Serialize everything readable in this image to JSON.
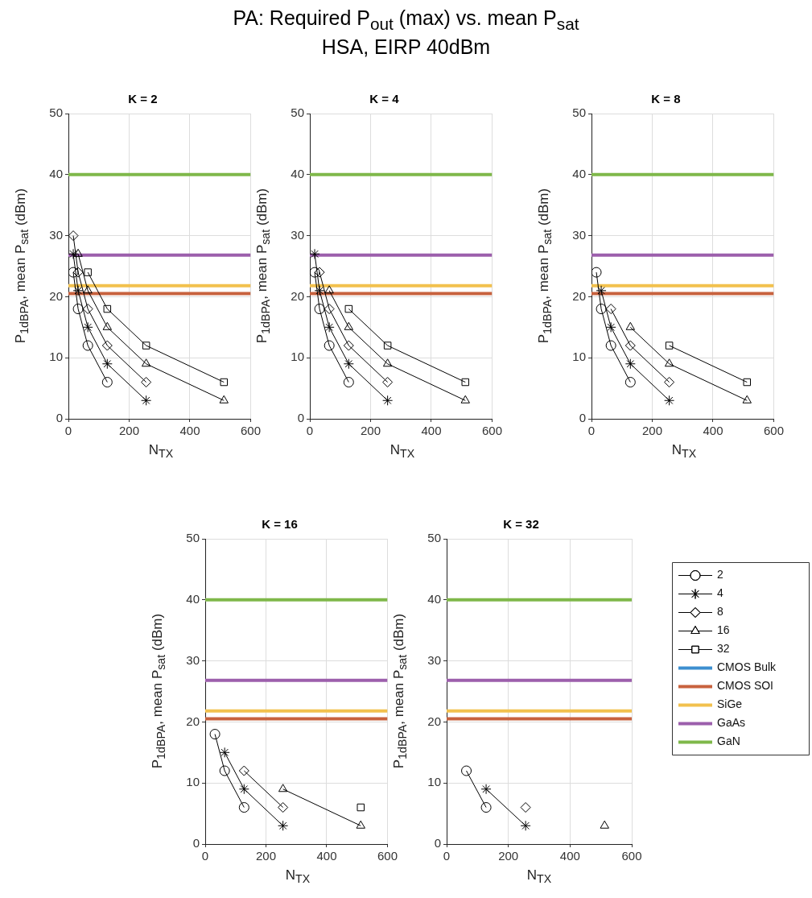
{
  "chart_data": [
    {
      "type": "other",
      "title": "PA: Required P$_{out}$ (max) vs. mean P$_{sat}$",
      "subtitle": "HSA, EIRP 40dBm"
    },
    {
      "type": "line",
      "title": "K = 2",
      "xlabel": "N$_{TX}$",
      "ylabel": "P$_{1dB}$$_{PA}$, mean P$_{sat}$ (dBm)",
      "xlim": [
        0,
        600
      ],
      "xticks": [
        0,
        200,
        400,
        600
      ],
      "ylim": [
        0,
        50
      ],
      "yticks": [
        0,
        10,
        20,
        30,
        40,
        50
      ],
      "grid": true,
      "series": [
        {
          "color": "#000000",
          "marker": "circle",
          "x": [
            16,
            32,
            64,
            128
          ],
          "values": [
            24,
            18,
            12,
            6
          ]
        },
        {
          "color": "#000000",
          "marker": "cross",
          "x": [
            16,
            32,
            64,
            128,
            256
          ],
          "values": [
            27,
            21,
            15,
            9,
            3
          ]
        },
        {
          "color": "#000000",
          "marker": "diamond",
          "x": [
            16,
            32,
            64,
            128,
            256
          ],
          "values": [
            30,
            24,
            18,
            12,
            6
          ]
        },
        {
          "color": "#000000",
          "marker": "triangle",
          "x": [
            32,
            64,
            128,
            256,
            512
          ],
          "values": [
            27,
            21,
            15,
            9,
            3
          ]
        },
        {
          "color": "#000000",
          "marker": "square",
          "x": [
            64,
            128,
            256,
            512
          ],
          "values": [
            24,
            18,
            12,
            6
          ]
        },
        {
          "color": "#c8623e",
          "marker": "none",
          "x": [
            0,
            600
          ],
          "values": [
            20.5,
            20.5
          ]
        },
        {
          "color": "#f2c14e",
          "marker": "none",
          "x": [
            0,
            600
          ],
          "values": [
            21.8,
            21.8
          ]
        },
        {
          "color": "#9c5fac",
          "marker": "none",
          "x": [
            0,
            600
          ],
          "values": [
            26.8,
            26.8
          ]
        },
        {
          "color": "#7fb84a",
          "marker": "none",
          "x": [
            0,
            600
          ],
          "values": [
            40,
            40
          ]
        }
      ]
    },
    {
      "type": "line",
      "title": "K = 4",
      "xlabel": "N$_{TX}$",
      "ylabel": "P$_{1dB}$$_{PA}$, mean P$_{sat}$ (dBm)",
      "xlim": [
        0,
        600
      ],
      "xticks": [
        0,
        200,
        400,
        600
      ],
      "ylim": [
        0,
        50
      ],
      "yticks": [
        0,
        10,
        20,
        30,
        40,
        50
      ],
      "grid": true,
      "series": [
        {
          "color": "#000000",
          "marker": "circle",
          "x": [
            16,
            32,
            64,
            128
          ],
          "values": [
            24,
            18,
            12,
            6
          ]
        },
        {
          "color": "#000000",
          "marker": "cross",
          "x": [
            16,
            32,
            64,
            128,
            256
          ],
          "values": [
            27,
            21,
            15,
            9,
            3
          ]
        },
        {
          "color": "#000000",
          "marker": "diamond",
          "x": [
            32,
            64,
            128,
            256
          ],
          "values": [
            24,
            18,
            12,
            6
          ]
        },
        {
          "color": "#000000",
          "marker": "triangle",
          "x": [
            64,
            128,
            256,
            512
          ],
          "values": [
            21,
            15,
            9,
            3
          ]
        },
        {
          "color": "#000000",
          "marker": "square",
          "x": [
            128,
            256,
            512
          ],
          "values": [
            18,
            12,
            6
          ]
        },
        {
          "color": "#c8623e",
          "marker": "none",
          "x": [
            0,
            600
          ],
          "values": [
            20.5,
            20.5
          ]
        },
        {
          "color": "#f2c14e",
          "marker": "none",
          "x": [
            0,
            600
          ],
          "values": [
            21.8,
            21.8
          ]
        },
        {
          "color": "#9c5fac",
          "marker": "none",
          "x": [
            0,
            600
          ],
          "values": [
            26.8,
            26.8
          ]
        },
        {
          "color": "#7fb84a",
          "marker": "none",
          "x": [
            0,
            600
          ],
          "values": [
            40,
            40
          ]
        }
      ]
    },
    {
      "type": "line",
      "title": "K = 8",
      "xlabel": "N$_{TX}$",
      "ylabel": "P$_{1dB}$$_{PA}$, mean P$_{sat}$ (dBm)",
      "xlim": [
        0,
        600
      ],
      "xticks": [
        0,
        200,
        400,
        600
      ],
      "ylim": [
        0,
        50
      ],
      "yticks": [
        0,
        10,
        20,
        30,
        40,
        50
      ],
      "grid": true,
      "series": [
        {
          "color": "#000000",
          "marker": "circle",
          "x": [
            16,
            32,
            64,
            128
          ],
          "values": [
            24,
            18,
            12,
            6
          ]
        },
        {
          "color": "#000000",
          "marker": "cross",
          "x": [
            32,
            64,
            128,
            256
          ],
          "values": [
            21,
            15,
            9,
            3
          ]
        },
        {
          "color": "#000000",
          "marker": "diamond",
          "x": [
            64,
            128,
            256
          ],
          "values": [
            18,
            12,
            6
          ]
        },
        {
          "color": "#000000",
          "marker": "triangle",
          "x": [
            128,
            256,
            512
          ],
          "values": [
            15,
            9,
            3
          ]
        },
        {
          "color": "#000000",
          "marker": "square",
          "x": [
            256,
            512
          ],
          "values": [
            12,
            6
          ]
        },
        {
          "color": "#c8623e",
          "marker": "none",
          "x": [
            0,
            600
          ],
          "values": [
            20.5,
            20.5
          ]
        },
        {
          "color": "#f2c14e",
          "marker": "none",
          "x": [
            0,
            600
          ],
          "values": [
            21.8,
            21.8
          ]
        },
        {
          "color": "#9c5fac",
          "marker": "none",
          "x": [
            0,
            600
          ],
          "values": [
            26.8,
            26.8
          ]
        },
        {
          "color": "#7fb84a",
          "marker": "none",
          "x": [
            0,
            600
          ],
          "values": [
            40,
            40
          ]
        }
      ]
    },
    {
      "type": "line",
      "title": "K = 16",
      "xlabel": "N$_{TX}$",
      "ylabel": "P$_{1dB}$$_{PA}$, mean P$_{sat}$ (dBm)",
      "xlim": [
        0,
        600
      ],
      "xticks": [
        0,
        200,
        400,
        600
      ],
      "ylim": [
        0,
        50
      ],
      "yticks": [
        0,
        10,
        20,
        30,
        40,
        50
      ],
      "grid": true,
      "series": [
        {
          "color": "#000000",
          "marker": "circle",
          "x": [
            32,
            64,
            128
          ],
          "values": [
            18,
            12,
            6
          ]
        },
        {
          "color": "#000000",
          "marker": "cross",
          "x": [
            64,
            128,
            256
          ],
          "values": [
            15,
            9,
            3
          ]
        },
        {
          "color": "#000000",
          "marker": "diamond",
          "x": [
            128,
            256
          ],
          "values": [
            12,
            6
          ]
        },
        {
          "color": "#000000",
          "marker": "triangle",
          "x": [
            256,
            512
          ],
          "values": [
            9,
            3
          ]
        },
        {
          "color": "#000000",
          "marker": "square",
          "x": [
            512
          ],
          "values": [
            6
          ]
        },
        {
          "color": "#c8623e",
          "marker": "none",
          "x": [
            0,
            600
          ],
          "values": [
            20.5,
            20.5
          ]
        },
        {
          "color": "#f2c14e",
          "marker": "none",
          "x": [
            0,
            600
          ],
          "values": [
            21.8,
            21.8
          ]
        },
        {
          "color": "#9c5fac",
          "marker": "none",
          "x": [
            0,
            600
          ],
          "values": [
            26.8,
            26.8
          ]
        },
        {
          "color": "#7fb84a",
          "marker": "none",
          "x": [
            0,
            600
          ],
          "values": [
            40,
            40
          ]
        }
      ]
    },
    {
      "type": "line",
      "title": "K = 32",
      "xlabel": "N$_{TX}$",
      "ylabel": "P$_{1dB}$$_{PA}$, mean P$_{sat}$ (dBm)",
      "xlim": [
        0,
        600
      ],
      "xticks": [
        0,
        200,
        400,
        600
      ],
      "ylim": [
        0,
        50
      ],
      "yticks": [
        0,
        10,
        20,
        30,
        40,
        50
      ],
      "grid": true,
      "legend": "right",
      "series": [
        {
          "name": "2",
          "color": "#000000",
          "marker": "circle",
          "x": [
            64,
            128
          ],
          "values": [
            12,
            6
          ]
        },
        {
          "name": "4",
          "color": "#000000",
          "marker": "cross",
          "x": [
            128,
            256
          ],
          "values": [
            9,
            3
          ]
        },
        {
          "name": "8",
          "color": "#000000",
          "marker": "diamond",
          "x": [
            256
          ],
          "values": [
            6
          ]
        },
        {
          "name": "16",
          "color": "#000000",
          "marker": "triangle",
          "x": [
            512
          ],
          "values": [
            3
          ]
        },
        {
          "name": "32",
          "color": "#000000",
          "marker": "square"
        },
        {
          "name": "CMOS Bulk",
          "color": "#3d8fd0",
          "marker": "none"
        },
        {
          "name": "CMOS SOI",
          "color": "#c8623e",
          "marker": "none",
          "x": [
            0,
            600
          ],
          "values": [
            20.5,
            20.5
          ]
        },
        {
          "name": "SiGe",
          "color": "#f2c14e",
          "marker": "none",
          "x": [
            0,
            600
          ],
          "values": [
            21.8,
            21.8
          ]
        },
        {
          "name": "GaAs",
          "color": "#9c5fac",
          "marker": "none",
          "x": [
            0,
            600
          ],
          "values": [
            26.8,
            26.8
          ]
        },
        {
          "name": "GaN",
          "color": "#7fb84a",
          "marker": "none",
          "x": [
            0,
            600
          ],
          "values": [
            40,
            40
          ]
        }
      ]
    }
  ]
}
